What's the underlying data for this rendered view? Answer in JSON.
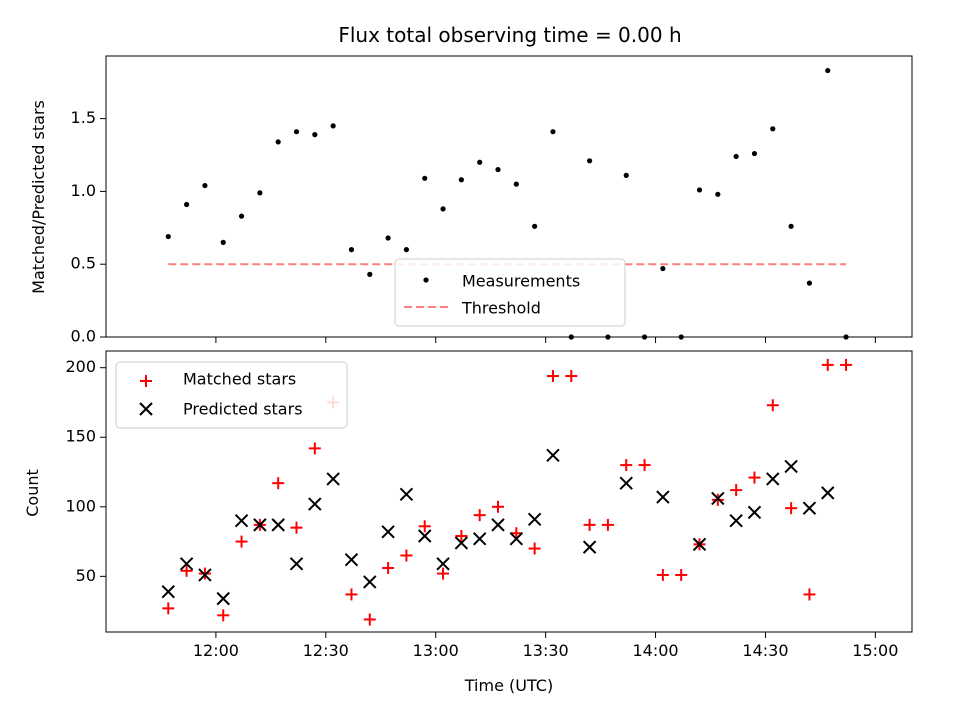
{
  "colors": {
    "measurements": "#000000",
    "threshold": "#ff7f7f",
    "matched": "#ff0000",
    "predicted": "#000000"
  },
  "chart_data": [
    {
      "type": "scatter",
      "title": "Flux total observing time = 0.00 h",
      "ylabel": "Matched/Predicted stars",
      "ylim": [
        0,
        1.93
      ],
      "yticks": [
        "0.0",
        "0.5",
        "1.0",
        "1.5"
      ],
      "xlim_minutes": [
        690,
        910
      ],
      "legend": {
        "position": "lower-center",
        "entries": [
          "Measurements",
          "Threshold"
        ]
      },
      "threshold": {
        "value": 0.5,
        "x": [
          "11:47",
          "14:52"
        ]
      },
      "series": [
        {
          "name": "Measurements",
          "marker": "dot",
          "x": [
            "11:47",
            "11:52",
            "11:57",
            "12:02",
            "12:07",
            "12:12",
            "12:17",
            "12:22",
            "12:27",
            "12:32",
            "12:37",
            "12:42",
            "12:47",
            "12:52",
            "12:57",
            "13:02",
            "13:07",
            "13:12",
            "13:17",
            "13:22",
            "13:27",
            "13:32",
            "13:37",
            "13:42",
            "13:47",
            "13:52",
            "13:57",
            "14:02",
            "14:07",
            "14:12",
            "14:17",
            "14:22",
            "14:27",
            "14:32",
            "14:37",
            "14:42",
            "14:47",
            "14:52"
          ],
          "y": [
            0.69,
            0.91,
            1.04,
            0.65,
            0.83,
            0.99,
            1.34,
            1.41,
            1.39,
            1.45,
            0.6,
            0.43,
            0.68,
            0.6,
            1.09,
            0.88,
            1.08,
            1.2,
            1.15,
            1.05,
            0.76,
            1.41,
            0.0,
            1.21,
            0.0,
            1.11,
            0.0,
            0.47,
            0.0,
            1.01,
            0.98,
            1.24,
            1.26,
            1.43,
            0.76,
            0.37,
            1.83,
            0.0
          ]
        }
      ]
    },
    {
      "type": "scatter",
      "title": "",
      "xlabel": "Time (UTC)",
      "ylabel": "Count",
      "ylim": [
        10,
        212
      ],
      "yticks": [
        50,
        100,
        150,
        200
      ],
      "xlim_minutes": [
        690,
        910
      ],
      "xticks": [
        "12:00",
        "12:30",
        "13:00",
        "13:30",
        "14:00",
        "14:30",
        "15:00"
      ],
      "legend": {
        "position": "upper-left",
        "entries": [
          "Matched stars",
          "Predicted stars"
        ]
      },
      "series": [
        {
          "name": "Matched stars",
          "marker": "plus",
          "x": [
            "11:47",
            "11:52",
            "11:57",
            "12:02",
            "12:07",
            "12:12",
            "12:17",
            "12:22",
            "12:27",
            "12:32",
            "12:37",
            "12:42",
            "12:47",
            "12:52",
            "12:57",
            "13:02",
            "13:07",
            "13:12",
            "13:17",
            "13:22",
            "13:27",
            "13:32",
            "13:37",
            "13:42",
            "13:47",
            "13:52",
            "13:57",
            "14:02",
            "14:07",
            "14:12",
            "14:17",
            "14:22",
            "14:27",
            "14:32",
            "14:37",
            "14:42",
            "14:47",
            "14:52"
          ],
          "y": [
            27,
            54,
            52,
            22,
            75,
            87,
            117,
            85,
            142,
            175,
            37,
            19,
            56,
            65,
            86,
            52,
            79,
            94,
            100,
            81,
            70,
            194,
            194,
            87,
            87,
            130,
            130,
            51,
            51,
            73,
            105,
            112,
            121,
            173,
            99,
            37,
            202,
            202
          ]
        },
        {
          "name": "Predicted stars",
          "marker": "x",
          "x": [
            "11:47",
            "11:52",
            "11:57",
            "12:02",
            "12:07",
            "12:12",
            "12:17",
            "12:22",
            "12:27",
            "12:32",
            "12:37",
            "12:42",
            "12:47",
            "12:52",
            "12:57",
            "13:02",
            "13:07",
            "13:12",
            "13:17",
            "13:22",
            "13:27",
            "13:32",
            "13:42",
            "13:52",
            "14:02",
            "14:12",
            "14:17",
            "14:22",
            "14:27",
            "14:32",
            "14:37",
            "14:42",
            "14:47"
          ],
          "y": [
            39,
            59,
            51,
            34,
            90,
            87,
            87,
            59,
            102,
            120,
            62,
            46,
            82,
            109,
            79,
            59,
            74,
            77,
            87,
            77,
            91,
            137,
            71,
            117,
            107,
            73,
            106,
            90,
            96,
            120,
            129,
            99,
            110
          ]
        }
      ]
    }
  ]
}
